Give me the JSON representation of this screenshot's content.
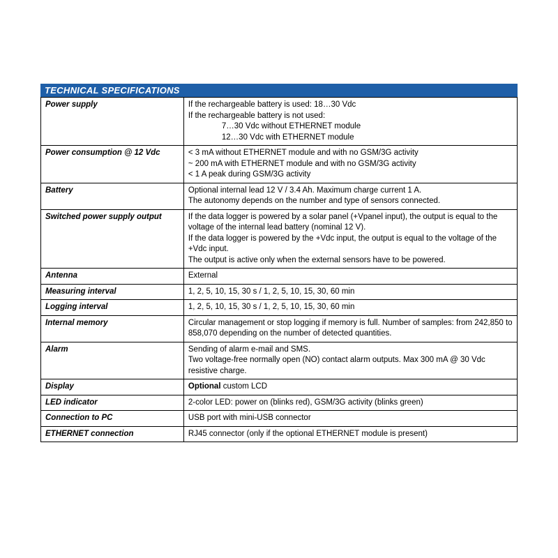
{
  "colors": {
    "header_bg": "#1f5fa8",
    "header_text": "#ffffff",
    "border": "#000000",
    "body_text": "#000000",
    "background": "#ffffff"
  },
  "typography": {
    "body_fontsize": 11.5,
    "header_fontsize": 13,
    "font_family": "Verdana, Arial, sans-serif"
  },
  "title": "TECHNICAL SPECIFICATIONS",
  "rows": [
    {
      "label": "Power supply",
      "lines": [
        "If the rechargeable battery is used: 18…30 Vdc",
        "If the rechargeable battery is not used:",
        "        7…30 Vdc without ETHERNET module",
        "        12…30 Vdc with ETHERNET module"
      ],
      "indent": [
        false,
        false,
        true,
        true
      ]
    },
    {
      "label": "Power consumption @ 12 Vdc",
      "lines": [
        "< 3 mA without ETHERNET module and with no GSM/3G activity",
        "~ 200 mA with ETHERNET module and with no GSM/3G activity",
        "< 1 A peak during GSM/3G activity"
      ],
      "indent": [
        false,
        false,
        false
      ]
    },
    {
      "label": "Battery",
      "lines": [
        "Optional internal lead 12 V / 3.4 Ah. Maximum charge current 1 A.",
        "The autonomy depends on the number and type of sensors connected."
      ],
      "indent": [
        false,
        false
      ]
    },
    {
      "label": "Switched power supply output",
      "lines": [
        "If the data logger is powered by a solar panel (+Vpanel input), the output is equal to the voltage of the internal lead battery (nominal 12 V).",
        "If the data logger is powered by the +Vdc input, the output is equal to the voltage of the +Vdc input.",
        "The output is active only when the external sensors have to be powered."
      ],
      "indent": [
        false,
        false,
        false
      ]
    },
    {
      "label": "Antenna",
      "lines": [
        "External"
      ],
      "indent": [
        false
      ]
    },
    {
      "label": "Measuring interval",
      "lines": [
        "1, 2, 5, 10, 15, 30 s / 1, 2, 5, 10, 15, 30, 60 min"
      ],
      "indent": [
        false
      ]
    },
    {
      "label": "Logging interval",
      "lines": [
        "1, 2, 5, 10, 15, 30 s / 1, 2, 5, 10, 15, 30, 60 min"
      ],
      "indent": [
        false
      ]
    },
    {
      "label": "Internal memory",
      "lines": [
        " Circular management or stop logging if memory is full. Number of samples: from 242,850 to 858,070 depending on the number of detected quantities."
      ],
      "indent": [
        false
      ]
    },
    {
      "label": "Alarm",
      "lines": [
        "Sending of alarm e-mail and SMS.",
        "Two voltage-free normally open (NO) contact alarm outputs. Max 300 mA @ 30 Vdc resistive charge."
      ],
      "indent": [
        false,
        false
      ]
    },
    {
      "label": "Display",
      "lines": [
        "Optional custom LCD"
      ],
      "lead_bold": "Optional",
      "rest": " custom LCD",
      "indent": [
        false
      ]
    },
    {
      "label": "LED indicator",
      "lines": [
        "2-color LED: power on (blinks red), GSM/3G activity (blinks green)"
      ],
      "indent": [
        false
      ]
    },
    {
      "label": "Connection to PC",
      "lines": [
        "USB port with mini-USB connector"
      ],
      "indent": [
        false
      ]
    },
    {
      "label": "ETHERNET connection",
      "lines": [
        "RJ45 connector  (only if the optional ETHERNET module is present)"
      ],
      "indent": [
        false
      ]
    }
  ]
}
